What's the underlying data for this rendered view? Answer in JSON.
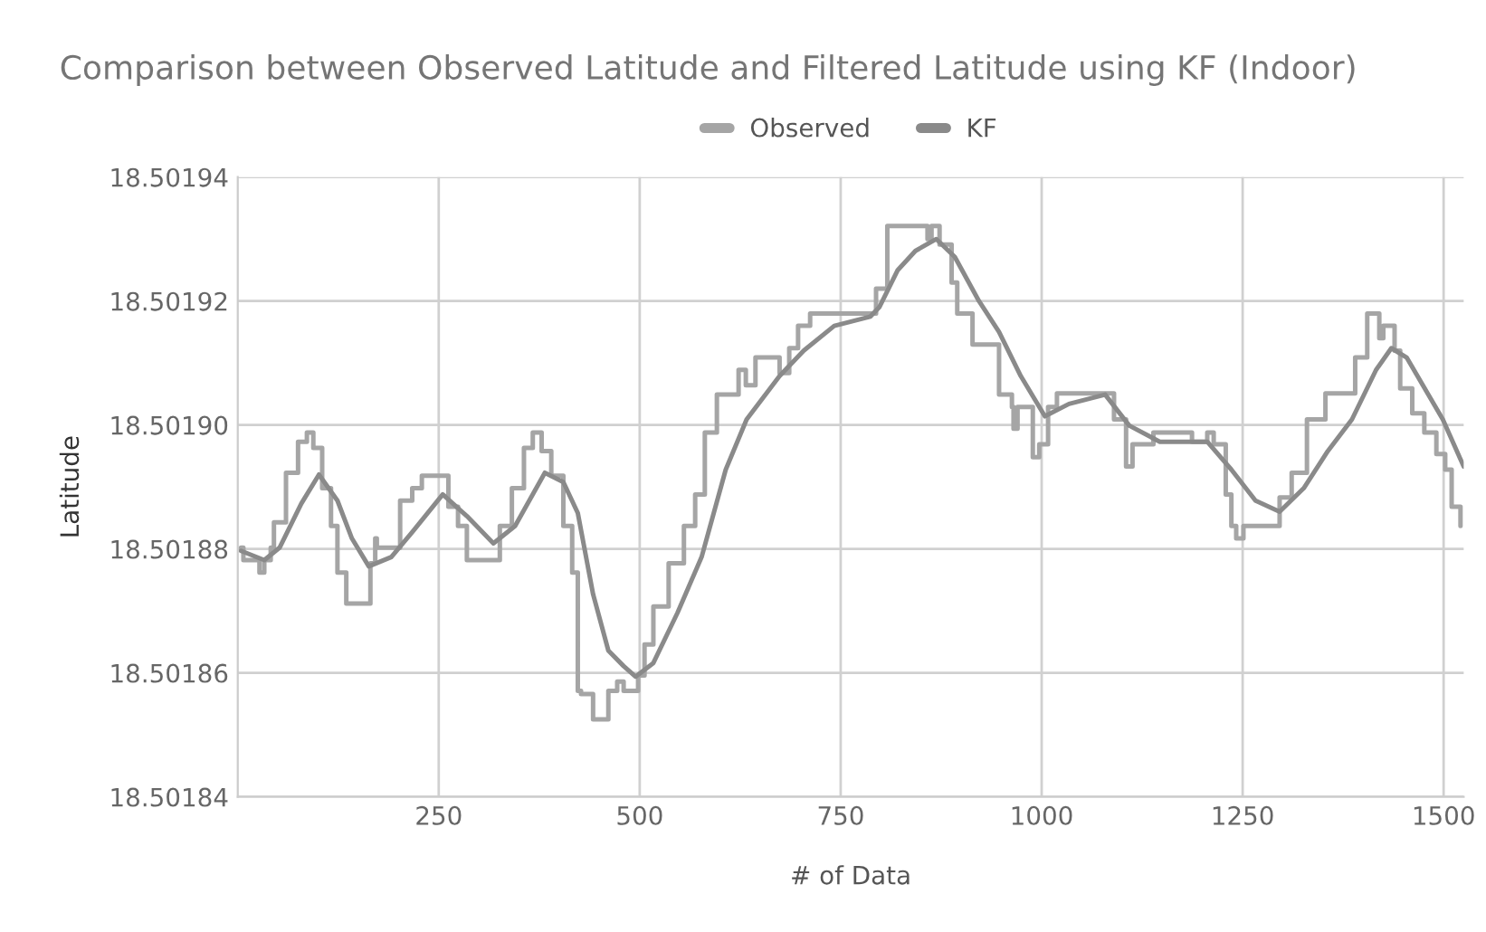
{
  "chart_data": {
    "type": "line",
    "title": "Comparison between Observed Latitude and Filtered Latitude using KF (Indoor)",
    "xlabel": "# of Data",
    "ylabel": "Latitude",
    "xlim": [
      0,
      1525
    ],
    "xticks": [
      250,
      500,
      750,
      1000,
      1250,
      1500
    ],
    "ylim": [
      18.50184,
      18.50194
    ],
    "yticks": [
      {
        "value": 18.50184,
        "label": "18.50184"
      },
      {
        "value": 18.50186,
        "label": "18.50186"
      },
      {
        "value": 18.50188,
        "label": "18.50188"
      },
      {
        "value": 18.5019,
        "label": "18.50190"
      },
      {
        "value": 18.50192,
        "label": "18.50192"
      },
      {
        "value": 18.50194,
        "label": "18.50194"
      }
    ],
    "grid": true,
    "legend": "top",
    "marker": "none",
    "line_style": "solid",
    "series": [
      {
        "name": "Observed",
        "type": "step",
        "color": "#a5a5a5",
        "x": [
          4,
          7,
          26,
          27,
          33,
          41,
          45,
          60,
          75,
          86,
          94,
          105,
          116,
          124,
          135,
          157,
          165,
          171,
          173,
          191,
          202,
          217,
          229,
          251,
          262,
          274,
          285,
          311,
          326,
          341,
          356,
          367,
          378,
          390,
          405,
          416,
          423,
          427,
          442,
          453,
          461,
          472,
          480,
          491,
          498,
          506,
          517,
          536,
          555,
          569,
          581,
          596,
          618,
          623,
          632,
          644,
          667,
          674,
          686,
          697,
          712,
          787,
          794,
          808,
          854,
          858,
          863,
          873,
          888,
          895,
          914,
          940,
          947,
          963,
          965,
          970,
          989,
          997,
          1008,
          1019,
          1079,
          1090,
          1105,
          1113,
          1124,
          1139,
          1180,
          1187,
          1206,
          1214,
          1229,
          1236,
          1242,
          1251,
          1285,
          1296,
          1311,
          1330,
          1353,
          1382,
          1390,
          1405,
          1416,
          1420,
          1425,
          1439,
          1446,
          1461,
          1476,
          1491,
          1502,
          1510,
          1521
        ],
        "values": [
          18.5018802,
          18.5018782,
          18.5018782,
          18.5018762,
          18.5018782,
          18.5018802,
          18.5018843,
          18.5018923,
          18.5018973,
          18.5018988,
          18.5018963,
          18.5018898,
          18.5018837,
          18.5018762,
          18.5018712,
          18.5018712,
          18.5018777,
          18.5018817,
          18.5018802,
          18.5018802,
          18.5018878,
          18.5018898,
          18.5018918,
          18.5018918,
          18.5018868,
          18.5018837,
          18.5018782,
          18.5018782,
          18.5018837,
          18.5018898,
          18.5018963,
          18.5018988,
          18.5018958,
          18.5018918,
          18.5018837,
          18.5018762,
          18.5018571,
          18.5018566,
          18.5018525,
          18.5018525,
          18.5018571,
          18.5018586,
          18.5018571,
          18.5018571,
          18.5018596,
          18.5018646,
          18.5018707,
          18.5018777,
          18.5018837,
          18.5018888,
          18.5018988,
          18.5019049,
          18.5019049,
          18.5019089,
          18.5019064,
          18.5019109,
          18.5019109,
          18.5019084,
          18.5019124,
          18.501916,
          18.501918,
          18.501918,
          18.501922,
          18.5019321,
          18.5019321,
          18.50193,
          18.5019321,
          18.5019291,
          18.501923,
          18.501918,
          18.501913,
          18.501913,
          18.5019049,
          18.5019029,
          18.5018994,
          18.5019029,
          18.5018948,
          18.5018969,
          18.5019029,
          18.5019051,
          18.5019051,
          18.5019009,
          18.5018933,
          18.5018969,
          18.5018969,
          18.5018988,
          18.5018988,
          18.5018973,
          18.5018988,
          18.5018969,
          18.5018888,
          18.5018837,
          18.5018817,
          18.5018837,
          18.5018837,
          18.5018883,
          18.5018923,
          18.5019009,
          18.5019051,
          18.5019051,
          18.5019109,
          18.501918,
          18.501918,
          18.501914,
          18.501916,
          18.501912,
          18.5019059,
          18.5019019,
          18.5018988,
          18.5018953,
          18.5018928,
          18.5018868,
          18.5018837
        ]
      },
      {
        "name": "KF",
        "type": "line",
        "color": "#8a8a8a",
        "x": [
          4,
          33,
          52,
          79,
          101,
          124,
          142,
          163,
          191,
          217,
          255,
          285,
          318,
          345,
          382,
          405,
          423,
          442,
          461,
          480,
          495,
          517,
          547,
          577,
          607,
          633,
          674,
          704,
          742,
          787,
          798,
          821,
          843,
          869,
          892,
          922,
          947,
          974,
          1004,
          1034,
          1079,
          1109,
          1147,
          1206,
          1236,
          1266,
          1296,
          1326,
          1356,
          1386,
          1416,
          1435,
          1454,
          1499,
          1525
        ],
        "values": [
          18.5018797,
          18.5018782,
          18.5018802,
          18.5018873,
          18.501892,
          18.5018878,
          18.5018817,
          18.5018772,
          18.5018787,
          18.5018827,
          18.5018888,
          18.5018853,
          18.5018809,
          18.5018837,
          18.5018923,
          18.5018908,
          18.5018858,
          18.5018727,
          18.5018636,
          18.5018611,
          18.5018594,
          18.5018616,
          18.5018697,
          18.5018787,
          18.5018928,
          18.5019009,
          18.5019079,
          18.501912,
          18.501916,
          18.5019175,
          18.501919,
          18.501925,
          18.5019281,
          18.50193,
          18.5019271,
          18.50192,
          18.501915,
          18.5019079,
          18.5019014,
          18.5019034,
          18.5019049,
          18.5018999,
          18.5018973,
          18.5018973,
          18.5018928,
          18.5018878,
          18.501886,
          18.5018898,
          18.5018958,
          18.5019009,
          18.5019089,
          18.5019124,
          18.5019109,
          18.5019009,
          18.5018933
        ]
      }
    ]
  }
}
